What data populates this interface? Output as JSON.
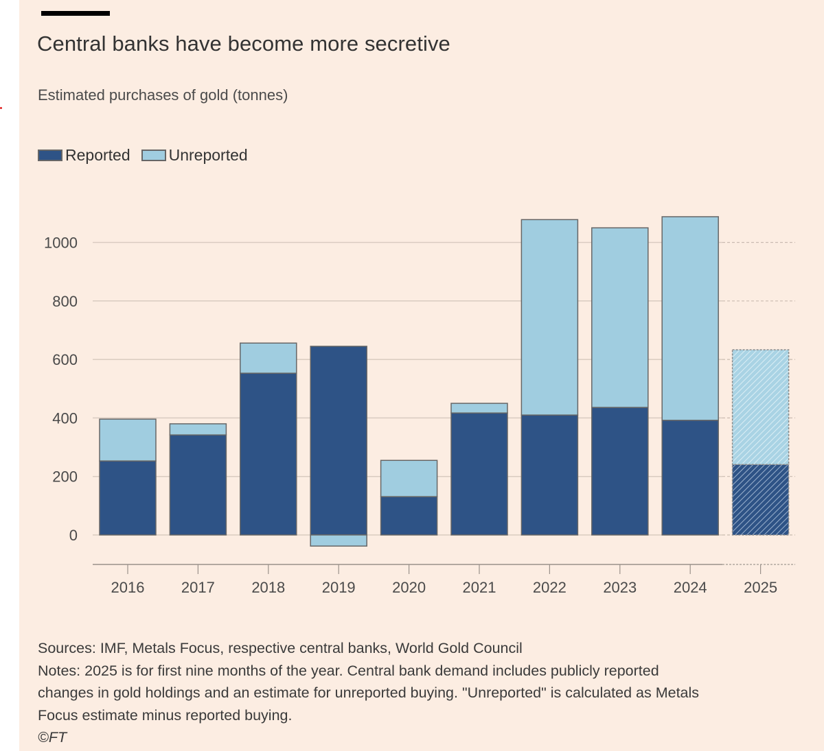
{
  "header": {
    "title": "Central banks have become more secretive",
    "subtitle": "Estimated purchases of gold (tonnes)"
  },
  "legend": [
    {
      "label": "Reported",
      "color": "#2e5386"
    },
    {
      "label": "Unreported",
      "color": "#a0cde0"
    }
  ],
  "colors": {
    "background": "#fcede2",
    "reported": "#2e5386",
    "unreported": "#a0cde0",
    "gridline": "#d9cbc0",
    "bar_outline": "#666666",
    "text": "#333333"
  },
  "chart_data": {
    "type": "bar",
    "stacked": true,
    "title": "Central banks have become more secretive",
    "subtitle": "Estimated purchases of gold (tonnes)",
    "xlabel": "",
    "ylabel": "Estimated purchases of gold (tonnes)",
    "categories": [
      "2016",
      "2017",
      "2018",
      "2019",
      "2020",
      "2021",
      "2022",
      "2023",
      "2024",
      "2025"
    ],
    "series": [
      {
        "name": "Reported",
        "values": [
          253,
          342,
          553,
          645,
          131,
          417,
          410,
          436,
          392,
          241
        ]
      },
      {
        "name": "Unreported",
        "values": [
          143,
          38,
          103,
          -38,
          124,
          33,
          668,
          614,
          696,
          392
        ]
      }
    ],
    "estimated_categories": [
      "2025"
    ],
    "ylim": [
      -100,
      1100
    ],
    "yticks": [
      0,
      200,
      400,
      600,
      800,
      1000
    ],
    "ytick_labels": [
      "0",
      "200",
      "400",
      "600",
      "800",
      "1000"
    ],
    "grid": true,
    "legend_position": "top-left"
  },
  "footer": {
    "sources": "Sources: IMF, Metals Focus, respective central banks, World Gold Council",
    "notes_lines": [
      "Notes: 2025 is for first nine months of the year. Central bank demand includes publicly reported",
      "changes in gold holdings and an estimate for unreported buying. \"Unreported\" is calculated as Metals",
      "Focus estimate minus reported buying."
    ],
    "copyright": "©FT"
  }
}
